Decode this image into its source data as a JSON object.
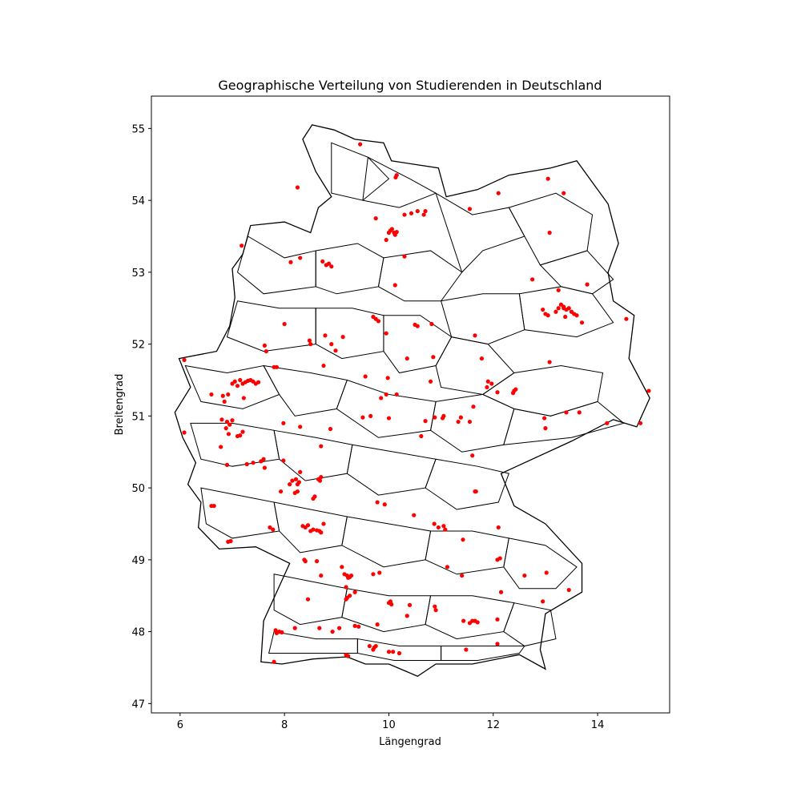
{
  "chart_data": {
    "type": "scatter",
    "title": "Geographische Verteilung von Studierenden in Deutschland",
    "xlabel": "Längengrad",
    "ylabel": "Breitengrad",
    "xlim": [
      5.45,
      15.38
    ],
    "ylim": [
      46.87,
      55.45
    ],
    "x_ticks": [
      6,
      8,
      10,
      12,
      14
    ],
    "y_ticks": [
      47,
      48,
      49,
      50,
      51,
      52,
      53,
      54,
      55
    ],
    "grid": false,
    "legend": "none",
    "background": "district boundaries of Germany (black outlines)",
    "point_color": "#ff0000",
    "outline_color": "#000000",
    "series": [
      {
        "x": [
          9.45,
          10.13,
          10.15,
          8.25,
          9.75,
          10.3,
          10.43,
          10.55,
          10.67,
          10.7,
          11.55,
          12.1,
          13.05,
          13.35,
          13.08,
          10.0,
          10.03,
          10.06,
          10.1,
          10.12,
          10.15,
          9.95,
          10.3,
          8.8,
          8.85,
          8.9,
          8.73,
          8.12,
          8.3,
          7.18,
          9.7,
          9.75,
          9.8,
          9.95,
          10.12,
          10.35,
          10.5,
          10.55,
          10.82,
          10.85,
          11.65,
          11.78,
          12.75,
          13.25,
          13.35,
          13.8,
          12.95,
          13.0,
          13.05,
          13.2,
          13.25,
          13.3,
          13.35,
          13.4,
          13.45,
          13.5,
          13.55,
          13.6,
          13.38,
          13.7,
          14.55,
          13.08,
          8.0,
          7.62,
          7.65,
          8.48,
          8.5,
          8.75,
          8.9,
          8.78,
          8.98,
          9.12,
          9.55,
          9.98,
          10.15,
          9.95,
          10.8,
          6.08,
          7.0,
          7.05,
          7.1,
          7.15,
          7.2,
          7.25,
          7.3,
          7.35,
          7.4,
          7.45,
          7.5,
          7.22,
          6.92,
          6.82,
          6.85,
          6.6,
          7.85,
          7.8,
          6.8,
          6.9,
          6.95,
          7.0,
          6.88,
          6.93,
          7.1,
          7.15,
          7.2,
          6.08,
          6.78,
          6.9,
          7.98,
          8.3,
          8.7,
          8.88,
          7.4,
          7.55,
          7.6,
          7.62,
          7.28,
          9.65,
          9.5,
          9.85,
          10.0,
          10.62,
          10.7,
          10.88,
          11.03,
          11.05,
          11.33,
          11.38,
          11.55,
          11.6,
          11.62,
          11.97,
          12.08,
          11.88,
          11.9,
          12.38,
          12.4,
          12.43,
          12.98,
          13.4,
          13.65,
          14.18,
          14.82,
          14.98,
          13.0,
          7.98,
          8.1,
          8.15,
          8.22,
          8.25,
          8.28,
          8.3,
          8.68,
          8.65,
          8.7,
          8.55,
          8.58,
          8.75,
          8.25,
          8.2,
          7.93,
          8.35,
          8.4,
          8.45,
          8.5,
          8.55,
          8.62,
          8.67,
          8.7,
          7.78,
          7.72,
          6.6,
          6.65,
          6.92,
          6.97,
          9.78,
          9.92,
          10.48,
          10.87,
          10.95,
          11.05,
          11.08,
          11.42,
          11.65,
          11.67,
          12.1,
          12.13,
          12.08,
          12.6,
          8.38,
          8.4,
          8.62,
          8.7,
          9.15,
          9.2,
          9.22,
          9.25,
          9.28,
          9.1,
          9.18,
          9.25,
          9.35,
          9.7,
          9.82,
          10.03,
          10.0,
          10.05,
          10.88,
          10.9,
          11.12,
          11.4,
          11.43,
          11.55,
          11.6,
          11.65,
          11.7,
          12.08,
          12.15,
          13.02,
          13.45,
          12.95,
          7.85,
          7.9,
          7.83,
          7.95,
          8.2,
          8.67,
          8.92,
          9.05,
          9.18,
          9.22,
          9.35,
          9.42,
          9.63,
          9.78,
          10.0,
          9.7,
          9.72,
          9.75,
          10.35,
          10.4,
          8.45,
          7.8,
          9.18,
          9.2,
          10.08,
          10.2,
          11.48,
          12.08
        ],
        "y": [
          54.78,
          54.32,
          54.35,
          54.18,
          53.75,
          53.8,
          53.82,
          53.85,
          53.8,
          53.85,
          53.88,
          54.1,
          54.3,
          54.1,
          53.55,
          53.55,
          53.58,
          53.6,
          53.55,
          53.52,
          53.56,
          53.45,
          53.22,
          53.1,
          53.12,
          53.08,
          53.15,
          53.14,
          53.2,
          53.37,
          52.38,
          52.35,
          52.32,
          52.15,
          52.82,
          51.8,
          52.27,
          52.25,
          52.28,
          51.82,
          52.12,
          51.8,
          52.9,
          52.75,
          52.5,
          52.83,
          52.48,
          52.42,
          52.4,
          52.45,
          52.5,
          52.55,
          52.52,
          52.48,
          52.5,
          52.45,
          52.42,
          52.4,
          52.38,
          52.3,
          52.35,
          51.75,
          52.28,
          51.98,
          51.9,
          52.05,
          52.0,
          51.7,
          52.0,
          52.12,
          51.91,
          52.1,
          51.55,
          51.53,
          51.3,
          51.3,
          51.48,
          51.78,
          51.45,
          51.48,
          51.42,
          51.5,
          51.45,
          51.47,
          51.49,
          51.5,
          51.48,
          51.45,
          51.47,
          51.25,
          51.3,
          51.28,
          51.2,
          51.3,
          51.68,
          51.68,
          50.95,
          50.92,
          50.88,
          50.94,
          50.83,
          50.75,
          50.72,
          50.73,
          50.78,
          50.77,
          50.57,
          50.32,
          50.9,
          50.85,
          50.58,
          50.82,
          50.35,
          50.37,
          50.4,
          50.28,
          50.33,
          51.0,
          50.98,
          51.25,
          50.97,
          50.72,
          50.93,
          50.98,
          50.97,
          51.0,
          50.92,
          50.98,
          50.92,
          50.45,
          51.13,
          51.45,
          51.33,
          51.4,
          51.48,
          51.32,
          51.35,
          51.37,
          50.97,
          51.05,
          51.05,
          50.9,
          50.9,
          51.35,
          50.83,
          50.38,
          50.05,
          50.1,
          50.12,
          50.05,
          50.08,
          50.22,
          50.1,
          50.12,
          50.15,
          49.85,
          49.88,
          49.5,
          49.95,
          49.93,
          49.95,
          49.47,
          49.45,
          49.48,
          49.4,
          49.42,
          49.41,
          49.4,
          49.38,
          49.42,
          49.45,
          49.75,
          49.75,
          49.25,
          49.26,
          49.8,
          49.77,
          49.62,
          49.5,
          49.45,
          49.47,
          49.42,
          49.28,
          49.95,
          49.95,
          49.45,
          49.02,
          49.0,
          48.78,
          49.0,
          48.98,
          48.98,
          48.78,
          48.8,
          48.78,
          48.75,
          48.76,
          48.78,
          48.9,
          48.62,
          48.5,
          48.55,
          48.8,
          48.82,
          48.42,
          48.4,
          48.38,
          48.35,
          48.3,
          48.9,
          48.78,
          48.15,
          48.12,
          48.15,
          48.15,
          48.13,
          48.17,
          48.55,
          48.82,
          48.58,
          48.42,
          47.98,
          48.0,
          48.02,
          47.99,
          48.05,
          48.05,
          48.0,
          48.05,
          47.68,
          47.66,
          48.08,
          48.07,
          47.8,
          48.1,
          47.72,
          47.75,
          47.78,
          47.8,
          48.22,
          48.37,
          48.45,
          47.58,
          48.45,
          48.47,
          47.72,
          47.7,
          47.75,
          47.83
        ]
      }
    ]
  }
}
